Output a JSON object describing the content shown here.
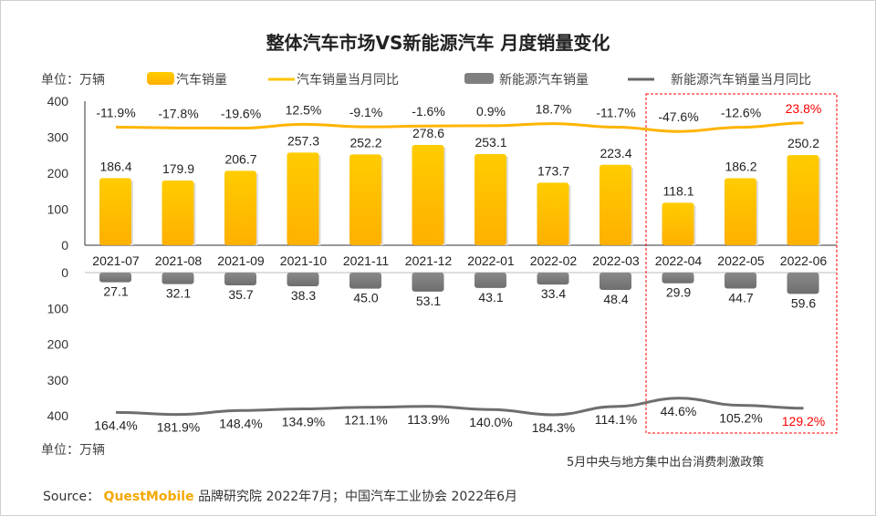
{
  "title": "整体汽车市场VS新能源汽车 月度销量变化",
  "unit_top": "单位：万辆",
  "unit_bottom": "单位：万辆",
  "note": "5月中央与地方集中出台消费刺激政策",
  "source": {
    "label": "Source：",
    "brand": "QuestMobile",
    "text": "品牌研究院 2022年7月；中国汽车工业协会 2022年6月"
  },
  "colors": {
    "car": "#ffc400",
    "nev": "#7f7f7f",
    "highlight": "#ff0000"
  },
  "chart_data": {
    "type": "bar",
    "categories": [
      "2021-07",
      "2021-08",
      "2021-09",
      "2021-10",
      "2021-11",
      "2021-12",
      "2022-01",
      "2022-02",
      "2022-03",
      "2022-04",
      "2022-05",
      "2022-06"
    ],
    "legend": [
      "汽车销量",
      "汽车销量当月同比",
      "新能源汽车销量",
      "新能源汽车销量当月同比"
    ],
    "series": [
      {
        "name": "汽车销量",
        "type": "bar",
        "values": [
          186.4,
          179.9,
          206.7,
          257.3,
          252.2,
          278.6,
          253.1,
          173.7,
          223.4,
          118.1,
          186.2,
          250.2
        ]
      },
      {
        "name": "汽车销量当月同比",
        "type": "line",
        "unit": "%",
        "values": [
          -11.9,
          -17.8,
          -19.6,
          12.5,
          -9.1,
          -1.6,
          0.9,
          18.7,
          -11.7,
          -47.6,
          -12.6,
          23.8
        ]
      },
      {
        "name": "新能源汽车销量",
        "type": "bar",
        "values": [
          27.1,
          32.1,
          35.7,
          38.3,
          45.0,
          53.1,
          43.1,
          33.4,
          48.4,
          29.9,
          44.7,
          59.6
        ]
      },
      {
        "name": "新能源汽车销量当月同比",
        "type": "line",
        "unit": "%",
        "values": [
          164.4,
          181.9,
          148.4,
          134.9,
          121.1,
          113.9,
          140.0,
          184.3,
          114.1,
          44.6,
          105.2,
          129.2
        ]
      }
    ],
    "yaxis_top": {
      "ticks": [
        0,
        100,
        200,
        300,
        400
      ],
      "ylim": [
        0,
        400
      ]
    },
    "yaxis_bottom": {
      "ticks": [
        0,
        100,
        200,
        300,
        400
      ],
      "ylim": [
        0,
        400
      ],
      "inverted": true
    },
    "highlight_range": [
      "2022-04",
      "2022-06"
    ]
  }
}
